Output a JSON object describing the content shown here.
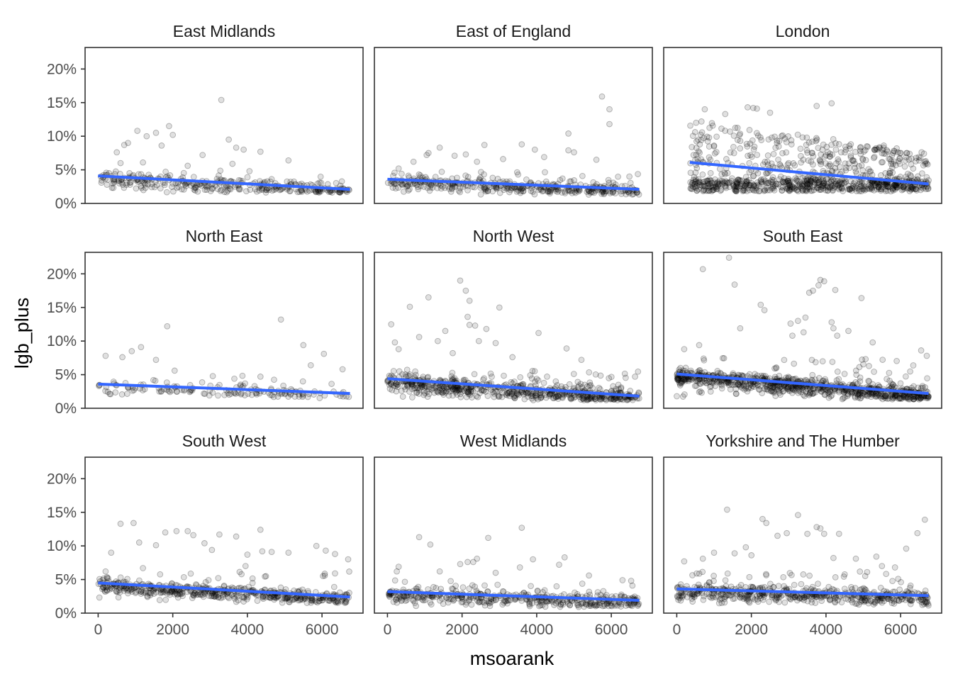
{
  "chart_data": {
    "type": "scatter",
    "layout": "facet-3x3",
    "xlabel": "msoarank",
    "ylabel": "lgb_plus",
    "xlim": [
      -350,
      7100
    ],
    "ylim": [
      0,
      23.2
    ],
    "x_ticks": [
      0,
      2000,
      4000,
      6000
    ],
    "x_tick_labels": [
      "0",
      "2000",
      "4000",
      "6000"
    ],
    "y_ticks": [
      0,
      5,
      10,
      15,
      20
    ],
    "y_tick_labels": [
      "0%",
      "5%",
      "10%",
      "15%",
      "20%"
    ],
    "grid": false,
    "trend_color": "#3366FF",
    "point_color": "#000000",
    "facets": [
      {
        "name": "East Midlands",
        "trend": {
          "x": [
            0,
            6750
          ],
          "y": [
            4.1,
            2.1
          ]
        },
        "cloud": {
          "count": 320,
          "x_range": [
            0,
            6750
          ],
          "band": [
            2.0,
            4.5
          ],
          "spread": 1.2
        },
        "outliers": [
          [
            3300,
            15.4
          ],
          [
            1900,
            11.5
          ],
          [
            1050,
            10.8
          ],
          [
            1550,
            10.5
          ],
          [
            2000,
            10.2
          ],
          [
            1300,
            10.0
          ],
          [
            3500,
            9.5
          ],
          [
            800,
            9.0
          ],
          [
            700,
            8.7
          ],
          [
            1700,
            8.6
          ],
          [
            3700,
            8.3
          ],
          [
            3900,
            8.0
          ],
          [
            4350,
            7.7
          ],
          [
            2800,
            7.2
          ],
          [
            500,
            7.6
          ],
          [
            5100,
            6.4
          ],
          [
            1200,
            6.1
          ],
          [
            2400,
            5.6
          ],
          [
            600,
            6.0
          ],
          [
            3600,
            5.9
          ]
        ]
      },
      {
        "name": "East of England",
        "trend": {
          "x": [
            0,
            6750
          ],
          "y": [
            3.6,
            2.1
          ]
        },
        "cloud": {
          "count": 380,
          "x_range": [
            0,
            6750
          ],
          "band": [
            1.7,
            4.3
          ],
          "spread": 1.0
        },
        "outliers": [
          [
            5750,
            15.9
          ],
          [
            5950,
            14.0
          ],
          [
            5950,
            11.8
          ],
          [
            4850,
            10.4
          ],
          [
            3600,
            8.8
          ],
          [
            2600,
            8.7
          ],
          [
            1400,
            8.3
          ],
          [
            1100,
            7.5
          ],
          [
            1050,
            7.2
          ],
          [
            3950,
            8.0
          ],
          [
            4850,
            7.9
          ],
          [
            5000,
            7.6
          ],
          [
            2100,
            7.3
          ],
          [
            3100,
            6.6
          ],
          [
            4200,
            6.9
          ],
          [
            1800,
            7.1
          ],
          [
            5600,
            6.5
          ],
          [
            700,
            6.2
          ],
          [
            2400,
            6.2
          ],
          [
            300,
            5.2
          ]
        ]
      },
      {
        "name": "London",
        "trend": {
          "x": [
            350,
            6750
          ],
          "y": [
            6.1,
            2.9
          ]
        },
        "cloud": {
          "count": 900,
          "x_range": [
            350,
            6750
          ],
          "band": [
            1.8,
            12.5
          ],
          "spread": 1.0
        },
        "outliers": [
          [
            750,
            14.0
          ],
          [
            1900,
            14.3
          ],
          [
            2050,
            14.2
          ],
          [
            2150,
            14.1
          ],
          [
            3750,
            14.5
          ],
          [
            4150,
            14.9
          ],
          [
            1300,
            13.3
          ],
          [
            2500,
            13.5
          ],
          [
            5550,
            8.6
          ],
          [
            5800,
            7.5
          ],
          [
            6650,
            6.2
          ],
          [
            450,
            7.2
          ],
          [
            900,
            6.5
          ]
        ]
      },
      {
        "name": "North East",
        "trend": {
          "x": [
            0,
            6750
          ],
          "y": [
            3.6,
            2.2
          ]
        },
        "cloud": {
          "count": 150,
          "x_range": [
            0,
            6750
          ],
          "band": [
            1.9,
            4.5
          ],
          "spread": 1.0
        },
        "outliers": [
          [
            1850,
            12.2
          ],
          [
            4900,
            13.2
          ],
          [
            5500,
            9.4
          ],
          [
            6050,
            8.1
          ],
          [
            1150,
            9.1
          ],
          [
            900,
            8.5
          ],
          [
            650,
            7.6
          ],
          [
            200,
            7.8
          ],
          [
            1550,
            7.2
          ],
          [
            2050,
            5.6
          ],
          [
            5700,
            6.4
          ],
          [
            6550,
            5.8
          ],
          [
            4350,
            4.7
          ],
          [
            3650,
            4.4
          ]
        ]
      },
      {
        "name": "North West",
        "trend": {
          "x": [
            0,
            6750
          ],
          "y": [
            4.4,
            1.8
          ]
        },
        "cloud": {
          "count": 620,
          "x_range": [
            0,
            6750
          ],
          "band": [
            1.6,
            5.0
          ],
          "spread": 1.4
        },
        "outliers": [
          [
            1950,
            19.0
          ],
          [
            2100,
            17.5
          ],
          [
            1100,
            16.5
          ],
          [
            2200,
            16.0
          ],
          [
            600,
            15.1
          ],
          [
            3000,
            15.0
          ],
          [
            2150,
            13.6
          ],
          [
            100,
            12.5
          ],
          [
            2200,
            12.4
          ],
          [
            2350,
            12.3
          ],
          [
            1550,
            11.5
          ],
          [
            2650,
            11.8
          ],
          [
            4050,
            11.2
          ],
          [
            850,
            10.6
          ],
          [
            200,
            9.8
          ],
          [
            2450,
            10.0
          ],
          [
            2900,
            9.7
          ],
          [
            4800,
            8.9
          ],
          [
            3350,
            7.6
          ],
          [
            5200,
            7.2
          ],
          [
            300,
            8.8
          ],
          [
            1350,
            10.0
          ],
          [
            1750,
            8.2
          ]
        ]
      },
      {
        "name": "South East",
        "trend": {
          "x": [
            0,
            6750
          ],
          "y": [
            5.1,
            2.2
          ]
        },
        "cloud": {
          "count": 820,
          "x_range": [
            0,
            6750
          ],
          "band": [
            1.7,
            6.5
          ],
          "spread": 1.2
        },
        "outliers": [
          [
            1400,
            22.4
          ],
          [
            700,
            20.7
          ],
          [
            3850,
            19.1
          ],
          [
            3950,
            18.9
          ],
          [
            1550,
            18.4
          ],
          [
            3800,
            18.3
          ],
          [
            4250,
            17.6
          ],
          [
            3550,
            17.2
          ],
          [
            3650,
            17.5
          ],
          [
            2250,
            15.4
          ],
          [
            4950,
            16.4
          ],
          [
            2350,
            14.6
          ],
          [
            3450,
            13.5
          ],
          [
            3250,
            13.0
          ],
          [
            4150,
            12.8
          ],
          [
            3050,
            12.6
          ],
          [
            4200,
            11.9
          ],
          [
            3400,
            11.3
          ],
          [
            1700,
            11.9
          ],
          [
            4600,
            11.5
          ],
          [
            600,
            9.4
          ],
          [
            200,
            8.8
          ],
          [
            3100,
            10.8
          ],
          [
            4300,
            10.8
          ],
          [
            5250,
            9.8
          ],
          [
            6550,
            8.6
          ],
          [
            6700,
            7.8
          ]
        ]
      },
      {
        "name": "South West",
        "trend": {
          "x": [
            0,
            6750
          ],
          "y": [
            4.5,
            2.4
          ]
        },
        "cloud": {
          "count": 500,
          "x_range": [
            0,
            6750
          ],
          "band": [
            1.9,
            5.5
          ],
          "spread": 1.0
        },
        "outliers": [
          [
            600,
            13.3
          ],
          [
            950,
            13.4
          ],
          [
            2400,
            12.2
          ],
          [
            1800,
            12.0
          ],
          [
            2100,
            12.2
          ],
          [
            2550,
            11.6
          ],
          [
            4350,
            12.4
          ],
          [
            3250,
            11.7
          ],
          [
            3700,
            11.4
          ],
          [
            5850,
            10.0
          ],
          [
            6100,
            9.3
          ],
          [
            1100,
            10.5
          ],
          [
            1550,
            10.1
          ],
          [
            2850,
            10.4
          ],
          [
            3050,
            9.4
          ],
          [
            4000,
            8.7
          ],
          [
            4400,
            9.2
          ],
          [
            4650,
            9.1
          ],
          [
            5100,
            9.0
          ],
          [
            6350,
            8.8
          ],
          [
            6700,
            8.0
          ],
          [
            350,
            9.0
          ],
          [
            200,
            6.2
          ],
          [
            1200,
            6.7
          ],
          [
            3950,
            7.0
          ]
        ]
      },
      {
        "name": "West Midlands",
        "trend": {
          "x": [
            0,
            6750
          ],
          "y": [
            3.2,
            1.9
          ]
        },
        "cloud": {
          "count": 420,
          "x_range": [
            0,
            6750
          ],
          "band": [
            1.3,
            4.5
          ],
          "spread": 1.2
        },
        "outliers": [
          [
            3600,
            12.7
          ],
          [
            850,
            11.3
          ],
          [
            2700,
            11.2
          ],
          [
            1150,
            10.2
          ],
          [
            2400,
            8.1
          ],
          [
            4750,
            8.3
          ],
          [
            3900,
            8.0
          ],
          [
            2150,
            7.6
          ],
          [
            2300,
            7.6
          ],
          [
            1950,
            7.3
          ],
          [
            3550,
            6.8
          ],
          [
            4600,
            7.2
          ],
          [
            1400,
            6.2
          ],
          [
            300,
            6.9
          ],
          [
            250,
            6.2
          ],
          [
            5400,
            5.6
          ],
          [
            6300,
            4.9
          ],
          [
            2900,
            6.0
          ]
        ]
      },
      {
        "name": "Yorkshire and The Humber",
        "trend": {
          "x": [
            0,
            6750
          ],
          "y": [
            3.6,
            2.6
          ]
        },
        "cloud": {
          "count": 520,
          "x_range": [
            0,
            6750
          ],
          "band": [
            1.5,
            5.5
          ],
          "spread": 1.2
        },
        "outliers": [
          [
            1350,
            15.4
          ],
          [
            3250,
            14.6
          ],
          [
            2300,
            14.0
          ],
          [
            2400,
            13.4
          ],
          [
            3750,
            12.8
          ],
          [
            3850,
            12.6
          ],
          [
            6650,
            13.9
          ],
          [
            6450,
            11.9
          ],
          [
            4350,
            11.8
          ],
          [
            2950,
            11.9
          ],
          [
            3500,
            11.8
          ],
          [
            3950,
            11.8
          ],
          [
            2700,
            11.5
          ],
          [
            1850,
            9.8
          ],
          [
            1000,
            9.0
          ],
          [
            1550,
            8.9
          ],
          [
            2000,
            8.6
          ],
          [
            6150,
            9.6
          ],
          [
            5350,
            8.4
          ],
          [
            4800,
            8.1
          ],
          [
            700,
            8.1
          ],
          [
            200,
            7.7
          ],
          [
            5500,
            7.0
          ],
          [
            5850,
            6.8
          ],
          [
            4200,
            8.2
          ]
        ]
      }
    ]
  }
}
